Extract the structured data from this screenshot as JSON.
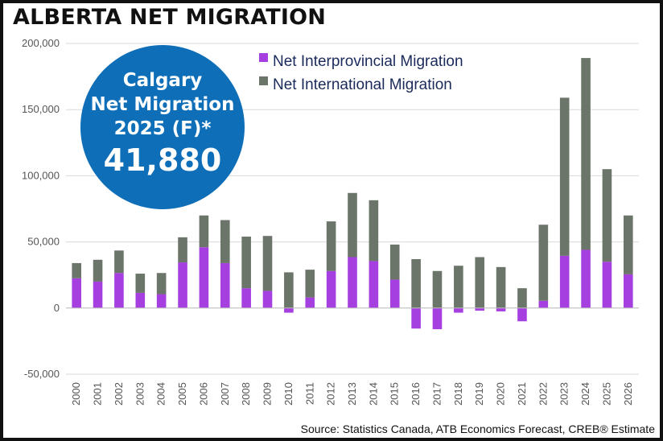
{
  "title": "ALBERTA NET MIGRATION",
  "badge": {
    "line1": "Calgary",
    "line2": "Net Migration",
    "line3": "2025 (F)*",
    "value": "41,880"
  },
  "source": "Source: Statistics Canada, ATB Economics Forecast, CREB® Estimate",
  "colors": {
    "interprovincial": "#a63fe0",
    "international": "#6b7569",
    "badge": "#0e6eb8"
  },
  "chart_data": {
    "type": "bar",
    "stacked": true,
    "title": "ALBERTA NET MIGRATION",
    "ylim": [
      -50000,
      200000
    ],
    "yticks": [
      -50000,
      0,
      50000,
      100000,
      150000,
      200000
    ],
    "ytick_labels": [
      "-50,000",
      "0",
      "50,000",
      "100,000",
      "150,000",
      "200,000"
    ],
    "grid": true,
    "legend_position": "top",
    "categories": [
      "2000",
      "2001",
      "2002",
      "2003",
      "2004",
      "2005",
      "2006",
      "2007",
      "2008",
      "2009",
      "2010",
      "2011",
      "2012",
      "2013",
      "2014",
      "2015",
      "2016",
      "2017",
      "2018",
      "2019",
      "2020",
      "2021",
      "2022",
      "2023",
      "2024",
      "2025",
      "2026"
    ],
    "series": [
      {
        "name": "Net Interprovincial Migration",
        "values": [
          22500,
          20000,
          26500,
          11500,
          10500,
          34500,
          46000,
          34000,
          15000,
          13000,
          -3500,
          8000,
          28000,
          38500,
          35500,
          21500,
          -15500,
          -16000,
          -3500,
          -2000,
          -2500,
          -10000,
          5500,
          39500,
          44000,
          35000,
          25500
        ]
      },
      {
        "name": "Net International Migration",
        "values": [
          11500,
          16500,
          17000,
          14500,
          16000,
          19000,
          24000,
          32500,
          39000,
          41500,
          27000,
          21000,
          37500,
          48500,
          46000,
          26500,
          37000,
          28000,
          32000,
          38500,
          31000,
          15000,
          57500,
          119500,
          145000,
          70000,
          44500
        ]
      }
    ]
  }
}
